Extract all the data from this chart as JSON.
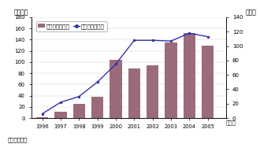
{
  "years": [
    1996,
    1997,
    1998,
    1999,
    2000,
    2001,
    2002,
    2003,
    2004,
    2005
  ],
  "sales": [
    2,
    12,
    26,
    38,
    104,
    88,
    94,
    135,
    152,
    130
  ],
  "companies": [
    6,
    22,
    30,
    50,
    75,
    108,
    108,
    107,
    118,
    113
  ],
  "bar_color": "#9b6b7a",
  "line_color": "#3333aa",
  "left_ylabel": "（億円）",
  "right_ylabel": "（社）",
  "xlabel": "（年）",
  "left_ylim": [
    0,
    180
  ],
  "right_ylim": [
    0,
    140
  ],
  "left_yticks": [
    0,
    20,
    40,
    60,
    80,
    100,
    120,
    140,
    160,
    180
  ],
  "right_yticks": [
    0,
    20,
    40,
    60,
    80,
    100,
    120,
    140
  ],
  "legend_bar": "売上額（左軸）",
  "legend_line": "企業数（右軸）",
  "source": "資料：高知県",
  "bg_color": "#ffffff"
}
